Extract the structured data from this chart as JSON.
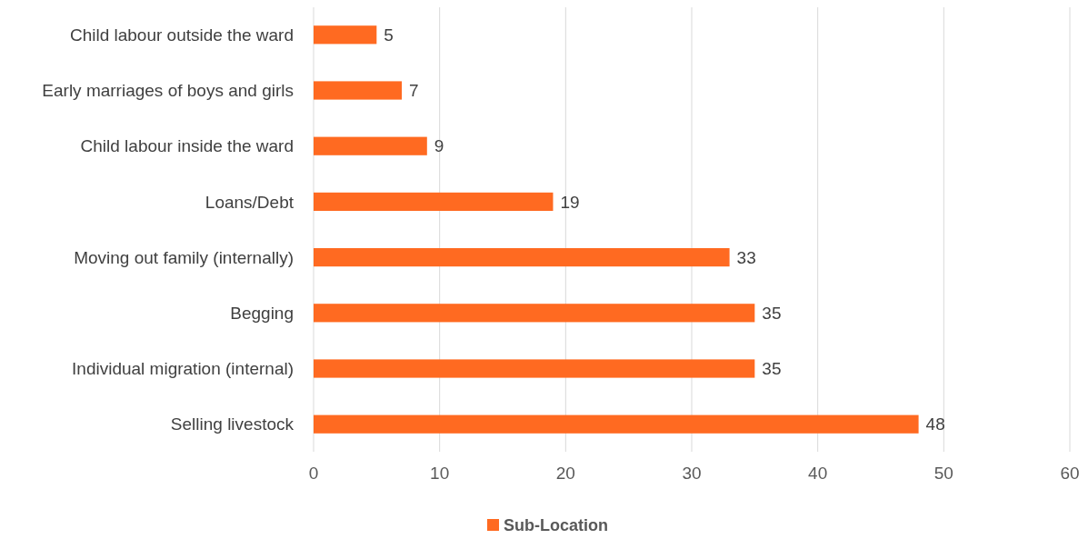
{
  "chart_data": {
    "type": "bar",
    "orientation": "horizontal",
    "categories": [
      "Child labour outside the ward",
      "Early marriages of boys and girls",
      "Child labour inside the ward",
      "Loans/Debt",
      "Moving out family (internally)",
      "Begging",
      "Individual migration (internal)",
      "Selling livestock"
    ],
    "series": [
      {
        "name": "Sub-Location",
        "color": "#ff6a21",
        "values": [
          5,
          7,
          9,
          19,
          33,
          35,
          35,
          48
        ]
      }
    ],
    "xlim": [
      0,
      60
    ],
    "xticks": [
      0,
      10,
      20,
      30,
      40,
      50,
      60
    ],
    "grid": "x",
    "legend": "bottom",
    "data_labels": true
  }
}
